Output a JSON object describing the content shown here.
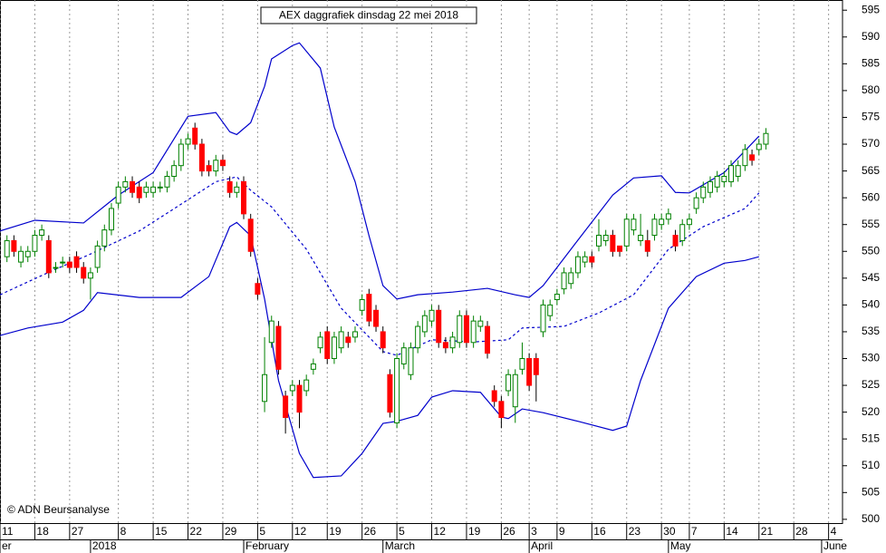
{
  "chart_data": {
    "type": "candlestick",
    "title": "AEX daggrafiek dinsdag 22 mei 2018",
    "copyright": "© ADN Beursanalyse",
    "x": [
      1,
      2,
      3,
      4,
      5,
      6,
      7,
      8,
      9,
      10,
      11,
      12,
      13,
      14,
      15,
      16,
      17,
      18,
      19,
      20,
      21,
      22,
      23,
      24,
      25,
      26,
      27,
      28,
      29,
      30,
      31,
      32,
      33,
      34,
      35,
      36,
      37,
      38,
      39,
      40,
      41,
      42,
      43,
      44,
      45,
      46,
      47,
      48,
      49,
      50,
      51,
      52,
      53,
      54,
      55,
      56,
      57,
      58,
      59,
      60,
      61,
      62,
      63,
      64,
      65,
      66,
      67,
      68,
      69,
      70,
      71,
      72,
      73,
      74,
      75,
      76,
      77,
      78,
      79,
      80,
      81,
      82,
      83,
      84,
      85,
      86,
      87,
      88,
      89,
      90,
      91,
      92,
      93,
      94,
      95,
      96,
      97,
      98,
      99,
      100,
      101,
      102,
      103,
      104,
      105,
      106,
      107,
      108,
      109,
      110
    ],
    "open": [
      549,
      552,
      548,
      549,
      550,
      553,
      552,
      547,
      548,
      548,
      549,
      547,
      545,
      547,
      551,
      554,
      559,
      562,
      563,
      562,
      561,
      561,
      562,
      562,
      564,
      566,
      570,
      573,
      570,
      566,
      565,
      567,
      563,
      561,
      563,
      556,
      544,
      522,
      533,
      536,
      523,
      524,
      525,
      524,
      528,
      532,
      535,
      530,
      532,
      534,
      534,
      539,
      542,
      539,
      535,
      527,
      518,
      529,
      527,
      532,
      535,
      537,
      539,
      533,
      532,
      533,
      538,
      533,
      536,
      536,
      524,
      522,
      524,
      521,
      528,
      530,
      530,
      535,
      538,
      541,
      543,
      544,
      546,
      548,
      549,
      551,
      552,
      553,
      551,
      551,
      554,
      552,
      552,
      553,
      555,
      556,
      553,
      552,
      555,
      558,
      560,
      561,
      562,
      563,
      563,
      564,
      566,
      568,
      569,
      570
    ],
    "high": [
      553,
      553,
      551,
      551,
      554,
      555,
      553,
      548,
      549,
      549,
      550,
      548,
      547,
      552,
      555,
      559,
      563,
      564,
      564,
      563,
      563,
      563,
      563,
      565,
      567,
      571,
      572,
      574,
      571,
      567,
      568,
      568,
      564,
      563,
      564,
      557,
      545,
      534,
      538,
      537,
      524,
      526,
      526,
      527,
      530,
      535,
      536,
      535,
      536,
      535,
      536,
      542,
      543,
      540,
      536,
      528,
      531,
      533,
      533,
      537,
      539,
      540,
      540,
      534,
      535,
      539,
      539,
      538,
      538,
      537,
      525,
      523,
      528,
      528,
      533,
      531,
      531,
      541,
      541,
      543,
      547,
      547,
      550,
      550,
      550,
      556,
      554,
      554,
      551,
      557,
      557,
      557,
      554,
      557,
      557,
      558,
      554,
      556,
      557,
      561,
      563,
      564,
      565,
      565,
      567,
      567,
      570,
      569,
      571,
      573
    ],
    "low": [
      548,
      549,
      547,
      548,
      549,
      552,
      545,
      546,
      547,
      546,
      546,
      544,
      541,
      546,
      550,
      553,
      558,
      561,
      560,
      559,
      560,
      560,
      561,
      561,
      563,
      565,
      569,
      569,
      564,
      564,
      564,
      565,
      560,
      560,
      556,
      549,
      541,
      520,
      532,
      527,
      516,
      523,
      517,
      523,
      527,
      531,
      529,
      529,
      531,
      532,
      533,
      538,
      536,
      535,
      531,
      519,
      517,
      528,
      526,
      531,
      534,
      536,
      532,
      531,
      531,
      532,
      532,
      532,
      535,
      530,
      521,
      517,
      523,
      518,
      527,
      524,
      522,
      534,
      537,
      540,
      542,
      543,
      545,
      547,
      547,
      550,
      551,
      549,
      549,
      550,
      553,
      551,
      549,
      552,
      554,
      555,
      550,
      551,
      554,
      557,
      559,
      560,
      561,
      562,
      562,
      563,
      565,
      566,
      568,
      569
    ],
    "close": [
      552,
      550,
      550,
      550,
      553,
      554,
      546,
      547,
      548,
      547,
      547,
      545,
      546,
      551,
      554,
      558,
      562,
      563,
      561,
      560,
      562,
      562,
      562,
      564,
      566,
      570,
      571,
      570,
      565,
      565,
      567,
      566,
      561,
      562,
      557,
      550,
      542,
      527,
      537,
      528,
      519,
      525,
      520,
      526,
      529,
      534,
      530,
      534,
      535,
      533,
      535,
      541,
      537,
      536,
      532,
      520,
      530,
      532,
      532,
      536,
      538,
      539,
      533,
      532,
      534,
      538,
      533,
      537,
      537,
      531,
      522,
      519,
      527,
      527,
      530,
      525,
      527,
      540,
      540,
      542,
      546,
      546,
      549,
      549,
      548,
      553,
      553,
      550,
      550,
      556,
      556,
      553,
      550,
      556,
      556,
      557,
      551,
      555,
      556,
      560,
      562,
      563,
      564,
      564,
      566,
      566,
      569,
      567,
      570,
      572
    ],
    "up_color": "#008000",
    "down_color": "#ff0000",
    "lines": [
      {
        "color": "#0000cc",
        "dashed": false,
        "x": [
          0,
          5,
          12,
          17,
          22,
          27,
          31,
          33,
          34,
          36,
          38,
          39,
          42,
          43,
          46,
          48,
          51,
          53,
          55,
          57,
          60,
          65,
          70,
          74,
          76,
          78,
          83,
          88,
          91,
          95,
          97,
          99,
          104,
          109
        ],
        "values": [
          553.8,
          555.8,
          555.3,
          560.5,
          564.7,
          575.2,
          575.9,
          572.3,
          571.8,
          574,
          580.8,
          585.9,
          588.4,
          588.9,
          584.2,
          573.2,
          563,
          552.9,
          543.6,
          541.1,
          541.9,
          542.4,
          543.1,
          541.9,
          541.4,
          543.6,
          552.1,
          560.5,
          563.7,
          564.1,
          561,
          560.9,
          564.7,
          571.5
        ]
      },
      {
        "color": "#0000cc",
        "dashed": true,
        "x": [
          0,
          7,
          13,
          20,
          26,
          31,
          34,
          36,
          39,
          44,
          49,
          55,
          57,
          62,
          68,
          73,
          75,
          81,
          86,
          91,
          96,
          101,
          107,
          109
        ],
        "values": [
          541.9,
          546.1,
          549.5,
          553.8,
          558.8,
          563,
          563.9,
          561.4,
          558.3,
          550.4,
          539.4,
          531.3,
          530.6,
          533.5,
          533.1,
          533.5,
          535.7,
          536,
          538.5,
          541.9,
          550.4,
          554.6,
          558,
          560.9
        ]
      },
      {
        "color": "#0000cc",
        "dashed": false,
        "x": [
          0,
          4,
          9,
          12,
          14,
          20,
          26,
          30,
          33,
          34,
          36,
          38,
          40,
          43,
          45,
          49,
          52,
          55,
          57,
          60,
          62,
          65,
          69,
          72,
          73,
          75,
          78,
          83,
          88,
          90,
          92,
          96,
          100,
          104,
          107,
          109
        ],
        "values": [
          534.3,
          535.7,
          536.8,
          539,
          542.3,
          541.4,
          541.4,
          545.3,
          554.6,
          555.4,
          552.9,
          541.1,
          525.9,
          512.3,
          507.8,
          508.1,
          512.3,
          517.9,
          518.3,
          519.4,
          522.8,
          524,
          523.7,
          519.1,
          518.8,
          520.6,
          519.9,
          518.3,
          516.6,
          517.4,
          525.9,
          539.4,
          545.3,
          547.8,
          548.3,
          549
        ]
      }
    ],
    "xlim": [
      0,
      121
    ],
    "ylim": [
      499.3,
      596.9
    ],
    "yticks": [
      500,
      505,
      510,
      515,
      520,
      525,
      530,
      535,
      540,
      545,
      550,
      555,
      560,
      565,
      570,
      575,
      580,
      585,
      590,
      595
    ],
    "xticks": [
      {
        "value": 0,
        "label": "11"
      },
      {
        "value": 5,
        "label": "18"
      },
      {
        "value": 10,
        "label": "27"
      },
      {
        "value": 17,
        "label": "8"
      },
      {
        "value": 22,
        "label": "15"
      },
      {
        "value": 27,
        "label": "22"
      },
      {
        "value": 32,
        "label": "29"
      },
      {
        "value": 37,
        "label": "5"
      },
      {
        "value": 42,
        "label": "12"
      },
      {
        "value": 47,
        "label": "19"
      },
      {
        "value": 52,
        "label": "26"
      },
      {
        "value": 57,
        "label": "5"
      },
      {
        "value": 62,
        "label": "12"
      },
      {
        "value": 67,
        "label": "19"
      },
      {
        "value": 72,
        "label": "26"
      },
      {
        "value": 76,
        "label": "3"
      },
      {
        "value": 80,
        "label": "9"
      },
      {
        "value": 85,
        "label": "16"
      },
      {
        "value": 90,
        "label": "23"
      },
      {
        "value": 95,
        "label": "30"
      },
      {
        "value": 99,
        "label": "7"
      },
      {
        "value": 104,
        "label": "14"
      },
      {
        "value": 109,
        "label": "21"
      },
      {
        "value": 114,
        "label": "28"
      },
      {
        "value": 119,
        "label": "4"
      }
    ],
    "month_labels": [
      {
        "value": 0,
        "label": "er"
      },
      {
        "value": 13,
        "label": "2018"
      },
      {
        "value": 35,
        "label": "February"
      },
      {
        "value": 55,
        "label": "March"
      },
      {
        "value": 76,
        "label": "April"
      },
      {
        "value": 96,
        "label": "May"
      },
      {
        "value": 118,
        "label": "June"
      }
    ],
    "grid": true
  }
}
